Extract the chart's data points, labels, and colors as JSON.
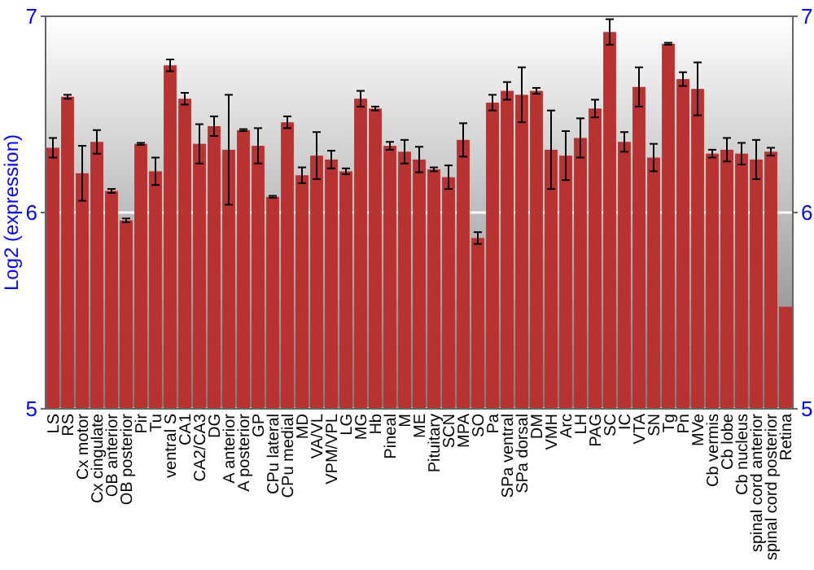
{
  "chart_data": {
    "type": "bar",
    "ylabel": "Log2 (expression)",
    "categories": [
      "LS",
      "RS",
      "Cx motor",
      "Cx cingulate",
      "OB anterior",
      "OB posterior",
      "Pir",
      "Tu",
      "ventral S",
      "CA1",
      "CA2/CA3",
      "DG",
      "A anterior",
      "A posterior",
      "GP",
      "CPu lateral",
      "CPu medial",
      "MD",
      "VA/VL",
      "VPM/VPL",
      "LG",
      "MG",
      "Hb",
      "Pineal",
      "M",
      "ME",
      "Pituitary",
      "SCN",
      "MPA",
      "SO",
      "Pa",
      "SPa ventral",
      "SPa dorsal",
      "DM",
      "VMH",
      "Arc",
      "LH",
      "PAG",
      "SC",
      "IC",
      "VTA",
      "SN",
      "Tg",
      "Pn",
      "MVe",
      "Cb vermis",
      "Cb lobe",
      "Cb nucleus",
      "spinal cord anterior",
      "spinal cord posterior",
      "Retina"
    ],
    "values": [
      6.33,
      6.59,
      6.2,
      6.36,
      6.11,
      5.96,
      6.35,
      6.21,
      6.75,
      6.58,
      6.35,
      6.44,
      6.32,
      6.42,
      6.34,
      6.08,
      6.46,
      6.19,
      6.29,
      6.27,
      6.21,
      6.58,
      6.53,
      6.34,
      6.31,
      6.27,
      6.22,
      6.18,
      6.37,
      5.87,
      6.56,
      6.62,
      6.6,
      6.62,
      6.32,
      6.29,
      6.38,
      6.53,
      6.92,
      6.36,
      6.64,
      6.28,
      6.86,
      6.68,
      6.63,
      6.3,
      6.32,
      6.3,
      6.27,
      6.31,
      5.52
    ],
    "errors": [
      0.05,
      0.01,
      0.14,
      0.06,
      0.01,
      0.01,
      0.005,
      0.07,
      0.03,
      0.03,
      0.1,
      0.05,
      0.28,
      0.005,
      0.09,
      0.005,
      0.03,
      0.04,
      0.12,
      0.045,
      0.015,
      0.04,
      0.01,
      0.02,
      0.06,
      0.065,
      0.01,
      0.06,
      0.085,
      0.03,
      0.04,
      0.045,
      0.14,
      0.015,
      0.2,
      0.125,
      0.1,
      0.045,
      0.065,
      0.05,
      0.1,
      0.07,
      0.005,
      0.035,
      0.135,
      0.02,
      0.06,
      0.055,
      0.1,
      0.02,
      null
    ],
    "color": "#b83232",
    "ylim": [
      5,
      7
    ],
    "yticks": [
      5,
      6,
      7
    ],
    "y2lim": [
      5,
      7
    ],
    "y2ticks": [
      5,
      6,
      7
    ],
    "grid": "y"
  }
}
